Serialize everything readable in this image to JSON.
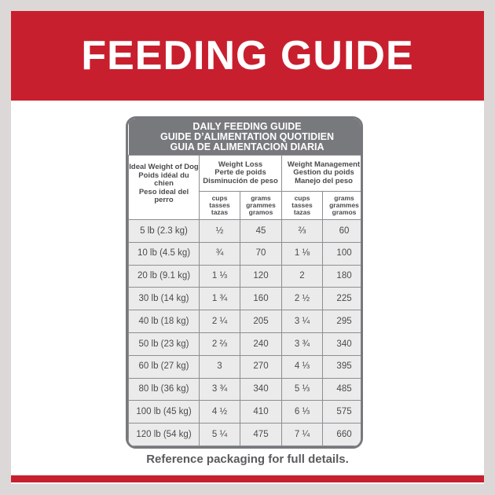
{
  "header": {
    "title": "FEEDING GUIDE"
  },
  "table": {
    "title": [
      "DAILY FEEDING GUIDE",
      "GUIDE D’ALIMENTATION QUOTIDIEN",
      "GUIA DE ALIMENTACION DIARIA"
    ],
    "weight_header": [
      "Ideal Weight of Dog",
      "Poids idéal du chien",
      "Peso ideal del perro"
    ],
    "groups": [
      {
        "lines": [
          "Weight Loss",
          "Perte de poids",
          "Disminución de peso"
        ],
        "units": [
          [
            "cups",
            "tasses",
            "tazas"
          ],
          [
            "grams",
            "grammes",
            "gramos"
          ]
        ]
      },
      {
        "lines": [
          "Weight Management",
          "Gestion du poids",
          "Manejo del peso"
        ],
        "units": [
          [
            "cups",
            "tasses",
            "tazas"
          ],
          [
            "grams",
            "grammes",
            "gramos"
          ]
        ]
      }
    ],
    "rows": [
      [
        "5 lb (2.3 kg)",
        "½",
        "45",
        "⅔",
        "60"
      ],
      [
        "10 lb (4.5 kg)",
        "¾",
        "70",
        "1 ⅛",
        "100"
      ],
      [
        "20 lb (9.1 kg)",
        "1 ⅓",
        "120",
        "2",
        "180"
      ],
      [
        "30 lb (14 kg)",
        "1 ¾",
        "160",
        "2 ½",
        "225"
      ],
      [
        "40 lb (18 kg)",
        "2 ¼",
        "205",
        "3 ¼",
        "295"
      ],
      [
        "50 lb (23 kg)",
        "2 ⅔",
        "240",
        "3 ¾",
        "340"
      ],
      [
        "60 lb (27 kg)",
        "3",
        "270",
        "4 ⅓",
        "395"
      ],
      [
        "80 lb (36 kg)",
        "3 ¾",
        "340",
        "5 ⅓",
        "485"
      ],
      [
        "100 lb (45 kg)",
        "4 ½",
        "410",
        "6 ⅓",
        "575"
      ],
      [
        "120 lb (54 kg)",
        "5 ¼",
        "475",
        "7 ¼",
        "660"
      ]
    ]
  },
  "footer": {
    "note": "Reference packaging for full details."
  }
}
